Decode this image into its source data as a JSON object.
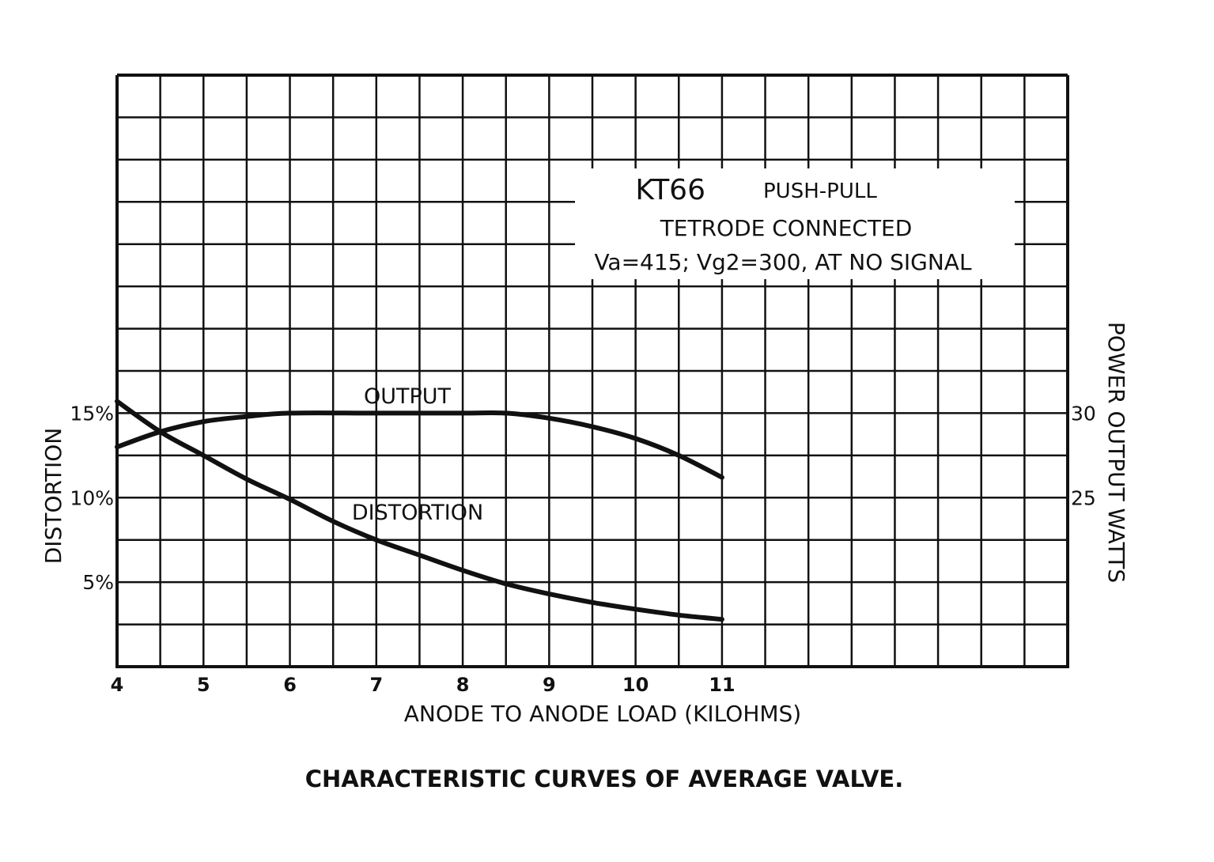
{
  "chart_data": {
    "type": "line",
    "title": "KT66 PUSH-PULL",
    "title_lines": [
      "KT66",
      "PUSH-PULL",
      "TETRODE CONNECTED",
      "Va=415; Vg2=300, AT NO SIGNAL"
    ],
    "caption": "CHARACTERISTIC CURVES OF AVERAGE VALVE.",
    "xlabel": "ANODE TO ANODE LOAD (KILOHMS)",
    "ylabel": "DISTORTION",
    "ylabel_right": "POWER OUTPUT WATTS",
    "xlim": [
      4,
      15
    ],
    "ylim": [
      0,
      35
    ],
    "ylim_right": [
      15,
      50
    ],
    "grid": true,
    "x_ticks": [
      "4",
      "5",
      "6",
      "7",
      "8",
      "9",
      "10",
      "11"
    ],
    "y_ticks": [
      {
        "value": 15,
        "label": "15%"
      },
      {
        "value": 10,
        "label": "10%"
      },
      {
        "value": 5,
        "label": "5%"
      }
    ],
    "y_ticks_right": [
      {
        "value": 30,
        "label": "30"
      },
      {
        "value": 25,
        "label": "25"
      }
    ],
    "series": [
      {
        "name": "OUTPUT",
        "axis": "right",
        "unit": "W",
        "x": [
          4,
          4.5,
          5,
          5.5,
          6,
          7,
          8,
          8.5,
          9,
          9.5,
          10,
          10.5,
          11
        ],
        "values": [
          28.0,
          28.9,
          29.5,
          29.8,
          30.0,
          30.0,
          30.0,
          30.0,
          29.7,
          29.2,
          28.5,
          27.5,
          26.2
        ]
      },
      {
        "name": "DISTORTION",
        "axis": "left",
        "unit": "%",
        "x": [
          4,
          4.5,
          5,
          5.5,
          6,
          6.5,
          7,
          7.5,
          8,
          8.5,
          9,
          9.5,
          10,
          10.5,
          11
        ],
        "values": [
          15.7,
          13.9,
          12.5,
          11.1,
          9.9,
          8.6,
          7.5,
          6.6,
          5.7,
          4.9,
          4.3,
          3.8,
          3.4,
          3.05,
          2.8
        ]
      }
    ]
  }
}
